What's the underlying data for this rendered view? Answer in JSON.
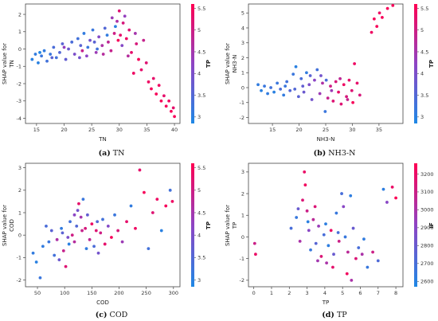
{
  "colors": {
    "low": "#1e88e5",
    "mid": "#8e44c4",
    "high": "#ff0052"
  },
  "chart_data": [
    {
      "id": "a",
      "type": "scatter",
      "caption_letter": "(a)",
      "caption_text": " TN",
      "xlabel": "TN",
      "ylabel": [
        "SHAP value for",
        "TN"
      ],
      "xlim": [
        13,
        41
      ],
      "ylim": [
        -4.3,
        2.6
      ],
      "xticks": [
        15,
        20,
        25,
        30,
        35,
        40
      ],
      "yticks": [
        -4,
        -3,
        -2,
        -1,
        0,
        1,
        2
      ],
      "colorbar": {
        "label": "TP",
        "min": 2.85,
        "max": 5.6,
        "ticks": [
          3.0,
          3.5,
          4.0,
          4.5,
          5.0,
          5.5
        ]
      },
      "pts": [
        [
          14.2,
          -0.6,
          3.0
        ],
        [
          14.8,
          -0.3,
          3.1
        ],
        [
          15.3,
          -0.8,
          3.0
        ],
        [
          15.9,
          -0.4,
          3.2
        ],
        [
          16.4,
          -0.1,
          3.1
        ],
        [
          16.9,
          -0.7,
          3.3
        ],
        [
          17.5,
          -0.3,
          3.2
        ],
        [
          18.1,
          0.1,
          3.4
        ],
        [
          18.6,
          -0.5,
          3.3
        ],
        [
          19.2,
          -0.2,
          3.5
        ],
        [
          19.7,
          0.3,
          3.6
        ],
        [
          20.3,
          -0.6,
          3.7
        ],
        [
          20.8,
          0.0,
          3.8
        ],
        [
          21.4,
          0.4,
          3.4
        ],
        [
          21.9,
          -0.3,
          4.0
        ],
        [
          22.5,
          0.6,
          3.3
        ],
        [
          23.0,
          0.2,
          3.6
        ],
        [
          23.6,
          0.9,
          3.1
        ],
        [
          24.1,
          -0.4,
          4.2
        ],
        [
          24.7,
          0.5,
          3.9
        ],
        [
          25.2,
          1.1,
          3.2
        ],
        [
          25.8,
          -0.2,
          4.4
        ],
        [
          26.3,
          0.7,
          4.1
        ],
        [
          26.9,
          0.2,
          4.6
        ],
        [
          27.4,
          1.2,
          3.5
        ],
        [
          28.0,
          0.4,
          4.8
        ],
        [
          28.5,
          -0.1,
          4.9
        ],
        [
          29.1,
          0.9,
          5.0
        ],
        [
          29.6,
          1.6,
          4.6
        ],
        [
          30.0,
          2.2,
          5.2
        ],
        [
          30.2,
          0.8,
          5.3
        ],
        [
          30.7,
          1.5,
          5.1
        ],
        [
          31.0,
          1.9,
          4.3
        ],
        [
          31.3,
          0.6,
          5.4
        ],
        [
          31.8,
          1.1,
          5.2
        ],
        [
          32.2,
          -0.2,
          5.3
        ],
        [
          32.6,
          -1.4,
          5.4
        ],
        [
          33.1,
          0.3,
          5.1
        ],
        [
          33.5,
          -0.6,
          5.5
        ],
        [
          34.0,
          -1.2,
          5.3
        ],
        [
          34.4,
          0.5,
          4.9
        ],
        [
          34.9,
          -0.8,
          5.2
        ],
        [
          35.3,
          -1.9,
          5.4
        ],
        [
          35.8,
          -2.3,
          5.5
        ],
        [
          36.2,
          -1.7,
          5.3
        ],
        [
          36.7,
          -2.6,
          5.5
        ],
        [
          37.2,
          -2.1,
          5.4
        ],
        [
          37.6,
          -3.0,
          5.5
        ],
        [
          38.1,
          -2.7,
          5.3
        ],
        [
          38.5,
          -3.3,
          5.5
        ],
        [
          39.0,
          -3.0,
          5.4
        ],
        [
          39.4,
          -3.6,
          5.5
        ],
        [
          39.8,
          -3.4,
          5.3
        ],
        [
          40.0,
          -3.9,
          5.5
        ],
        [
          22.8,
          -0.5,
          3.9
        ],
        [
          26.0,
          0.0,
          3.3
        ],
        [
          27.8,
          0.8,
          3.1
        ],
        [
          29.3,
          1.3,
          3.0
        ],
        [
          28.7,
          1.8,
          4.4
        ],
        [
          25.5,
          0.4,
          3.6
        ],
        [
          24.3,
          0.1,
          3.2
        ],
        [
          30.5,
          0.2,
          4.1
        ],
        [
          31.6,
          -0.4,
          4.7
        ],
        [
          20.0,
          0.1,
          4.3
        ],
        [
          17.8,
          -0.5,
          3.6
        ],
        [
          15.6,
          -0.2,
          2.9
        ],
        [
          27.1,
          -0.3,
          4.7
        ],
        [
          32.9,
          0.9,
          4.5
        ],
        [
          29.8,
          0.5,
          5.5
        ],
        [
          23.3,
          -0.1,
          4.9
        ]
      ]
    },
    {
      "id": "b",
      "type": "scatter",
      "caption_letter": "(b)",
      "caption_text": " NH3-N",
      "xlabel": "NH3-N",
      "ylabel": [
        "SHAP value for",
        "NH3-N"
      ],
      "xlim": [
        10.5,
        39.5
      ],
      "ylim": [
        -2.4,
        5.6
      ],
      "xticks": [
        15,
        20,
        25,
        30,
        35
      ],
      "yticks": [
        -2,
        -1,
        0,
        1,
        2,
        3,
        4,
        5
      ],
      "colorbar": {
        "label": "TP",
        "min": 2.85,
        "max": 5.6,
        "ticks": [
          3.0,
          3.5,
          4.0,
          4.5,
          5.0,
          5.5
        ]
      },
      "pts": [
        [
          12.3,
          0.2,
          3.1
        ],
        [
          12.9,
          -0.2,
          3.0
        ],
        [
          13.5,
          0.1,
          3.2
        ],
        [
          14.1,
          -0.4,
          3.1
        ],
        [
          14.7,
          0.0,
          3.3
        ],
        [
          15.3,
          -0.3,
          3.0
        ],
        [
          15.9,
          0.3,
          3.2
        ],
        [
          16.5,
          -0.1,
          3.4
        ],
        [
          17.1,
          -0.5,
          3.1
        ],
        [
          17.7,
          0.4,
          3.3
        ],
        [
          18.3,
          -0.2,
          3.5
        ],
        [
          18.9,
          0.9,
          3.2
        ],
        [
          19.4,
          1.4,
          3.0
        ],
        [
          19.9,
          -0.6,
          3.6
        ],
        [
          20.4,
          0.6,
          3.4
        ],
        [
          20.9,
          -0.3,
          3.8
        ],
        [
          21.4,
          1.0,
          3.1
        ],
        [
          21.9,
          0.2,
          4.0
        ],
        [
          22.4,
          -0.8,
          3.9
        ],
        [
          22.9,
          0.5,
          4.2
        ],
        [
          23.4,
          1.2,
          3.3
        ],
        [
          23.9,
          -0.4,
          4.4
        ],
        [
          24.4,
          0.3,
          4.6
        ],
        [
          24.9,
          -1.6,
          3.2
        ],
        [
          25.4,
          -0.7,
          4.9
        ],
        [
          25.9,
          0.1,
          5.0
        ],
        [
          26.4,
          -0.9,
          5.2
        ],
        [
          26.9,
          0.4,
          5.1
        ],
        [
          27.4,
          -0.3,
          5.3
        ],
        [
          27.9,
          -1.1,
          5.2
        ],
        [
          28.4,
          0.2,
          5.4
        ],
        [
          28.9,
          -0.6,
          5.1
        ],
        [
          29.4,
          0.5,
          5.3
        ],
        [
          29.9,
          -0.2,
          5.2
        ],
        [
          30.4,
          1.6,
          5.4
        ],
        [
          30.9,
          0.3,
          5.3
        ],
        [
          31.4,
          -0.5,
          5.1
        ],
        [
          33.6,
          3.7,
          5.4
        ],
        [
          34.1,
          4.6,
          5.5
        ],
        [
          34.6,
          4.1,
          5.5
        ],
        [
          35.1,
          5.0,
          5.4
        ],
        [
          35.6,
          4.7,
          5.5
        ],
        [
          36.6,
          5.3,
          5.5
        ],
        [
          37.6,
          5.5,
          5.5
        ],
        [
          22.1,
          0.8,
          3.6
        ],
        [
          20.7,
          0.1,
          3.7
        ],
        [
          26.1,
          -0.2,
          4.4
        ],
        [
          27.7,
          0.6,
          4.8
        ],
        [
          29.1,
          -0.8,
          4.9
        ],
        [
          19.2,
          -0.1,
          3.5
        ],
        [
          24.1,
          0.8,
          3.9
        ],
        [
          17.4,
          0.1,
          3.2
        ],
        [
          30.1,
          -1.0,
          5.5
        ],
        [
          25.1,
          0.5,
          3.4
        ]
      ]
    },
    {
      "id": "c",
      "type": "scatter",
      "caption_letter": "(c)",
      "caption_text": " COD",
      "xlabel": "COD",
      "ylabel": [
        "SHAP value for",
        "COD"
      ],
      "xlim": [
        28,
        312
      ],
      "ylim": [
        -2.3,
        3.2
      ],
      "xticks": [
        50,
        100,
        150,
        200,
        250,
        300
      ],
      "yticks": [
        -2,
        -1,
        0,
        1,
        2,
        3
      ],
      "colorbar": {
        "label": "TP",
        "min": 2.85,
        "max": 5.6,
        "ticks": [
          3.0,
          3.5,
          4.0,
          4.5,
          5.0,
          5.5
        ]
      },
      "pts": [
        [
          42,
          -0.8,
          3.1
        ],
        [
          48,
          -1.2,
          3.0
        ],
        [
          55,
          -1.9,
          3.2
        ],
        [
          60,
          -0.5,
          3.1
        ],
        [
          66,
          0.4,
          3.4
        ],
        [
          71,
          -0.3,
          3.2
        ],
        [
          76,
          0.2,
          3.6
        ],
        [
          81,
          -0.9,
          3.3
        ],
        [
          86,
          -0.2,
          4.6
        ],
        [
          90,
          -1.1,
          3.8
        ],
        [
          94,
          0.3,
          3.1
        ],
        [
          98,
          -0.7,
          4.9
        ],
        [
          102,
          -1.4,
          5.2
        ],
        [
          106,
          -0.1,
          4.0
        ],
        [
          110,
          0.6,
          3.3
        ],
        [
          114,
          0.0,
          5.0
        ],
        [
          118,
          0.9,
          4.2
        ],
        [
          122,
          0.4,
          3.5
        ],
        [
          126,
          1.4,
          5.3
        ],
        [
          130,
          0.8,
          4.5
        ],
        [
          134,
          1.6,
          3.2
        ],
        [
          138,
          0.3,
          5.1
        ],
        [
          142,
          0.9,
          3.7
        ],
        [
          146,
          -0.2,
          4.8
        ],
        [
          150,
          0.5,
          5.4
        ],
        [
          154,
          -0.5,
          3.4
        ],
        [
          158,
          0.2,
          5.2
        ],
        [
          162,
          -0.8,
          3.9
        ],
        [
          166,
          0.1,
          5.0
        ],
        [
          170,
          0.7,
          3.3
        ],
        [
          174,
          -0.4,
          5.3
        ],
        [
          180,
          0.4,
          4.1
        ],
        [
          186,
          -0.1,
          5.5
        ],
        [
          192,
          0.9,
          3.2
        ],
        [
          198,
          0.2,
          5.1
        ],
        [
          206,
          -0.3,
          4.4
        ],
        [
          214,
          0.6,
          5.3
        ],
        [
          222,
          1.3,
          3.1
        ],
        [
          230,
          0.3,
          5.4
        ],
        [
          238,
          2.9,
          5.3
        ],
        [
          246,
          1.9,
          5.5
        ],
        [
          254,
          -0.6,
          3.3
        ],
        [
          262,
          1.0,
          5.2
        ],
        [
          270,
          1.6,
          5.4
        ],
        [
          278,
          0.2,
          3.0
        ],
        [
          286,
          1.3,
          5.5
        ],
        [
          294,
          2.0,
          3.3
        ],
        [
          298,
          1.5,
          5.4
        ],
        [
          108,
          -0.4,
          3.0
        ],
        [
          124,
          1.1,
          3.9
        ],
        [
          140,
          -0.6,
          3.1
        ],
        [
          96,
          0.1,
          3.6
        ],
        [
          132,
          0.2,
          4.9
        ],
        [
          160,
          0.6,
          3.5
        ],
        [
          118,
          -0.3,
          4.7
        ]
      ]
    },
    {
      "id": "d",
      "type": "scatter",
      "caption_letter": "(d)",
      "caption_text": " TP",
      "xlabel": "TP",
      "ylabel": [
        "SHAP value for",
        "TP"
      ],
      "xlim": [
        -0.3,
        8.4
      ],
      "ylim": [
        -2.3,
        3.4
      ],
      "xticks": [
        0,
        1,
        2,
        3,
        4,
        5,
        6,
        7,
        8
      ],
      "yticks": [
        -2,
        -1,
        0,
        1,
        2,
        3
      ],
      "colorbar": {
        "label": "IF",
        "min": 2570,
        "max": 3260,
        "ticks": [
          2600,
          2700,
          2800,
          2900,
          3000,
          3100,
          3200
        ]
      },
      "pts": [
        [
          0.05,
          -0.3,
          3100
        ],
        [
          0.1,
          -0.8,
          3200
        ],
        [
          2.1,
          0.4,
          2700
        ],
        [
          2.4,
          0.9,
          2650
        ],
        [
          2.6,
          -0.2,
          3000
        ],
        [
          2.75,
          1.7,
          3150
        ],
        [
          2.85,
          3.0,
          3200
        ],
        [
          2.9,
          2.4,
          3220
        ],
        [
          3.0,
          1.2,
          3100
        ],
        [
          3.1,
          0.3,
          2900
        ],
        [
          3.2,
          -0.6,
          2650
        ],
        [
          3.35,
          0.8,
          3050
        ],
        [
          3.5,
          -0.3,
          2750
        ],
        [
          3.65,
          0.5,
          2950
        ],
        [
          3.8,
          -0.9,
          3150
        ],
        [
          3.95,
          0.1,
          2700
        ],
        [
          4.1,
          -1.2,
          3000
        ],
        [
          4.2,
          -0.4,
          2620
        ],
        [
          4.35,
          0.3,
          3200
        ],
        [
          4.5,
          -0.8,
          2800
        ],
        [
          4.65,
          1.1,
          2650
        ],
        [
          4.8,
          -0.2,
          3100
        ],
        [
          4.95,
          2.0,
          2700
        ],
        [
          5.05,
          1.4,
          2900
        ],
        [
          5.15,
          0.0,
          2650
        ],
        [
          5.3,
          -0.7,
          3050
        ],
        [
          5.45,
          1.9,
          2620
        ],
        [
          5.6,
          0.4,
          2800
        ],
        [
          5.75,
          -1.0,
          3150
        ],
        [
          5.9,
          -0.5,
          2700
        ],
        [
          6.1,
          -0.8,
          3000
        ],
        [
          6.4,
          -1.4,
          2650
        ],
        [
          6.7,
          -0.7,
          3100
        ],
        [
          7.0,
          -1.1,
          2720
        ],
        [
          7.3,
          2.2,
          2620
        ],
        [
          7.5,
          1.6,
          2900
        ],
        [
          7.8,
          2.3,
          3200
        ],
        [
          8.0,
          1.8,
          3250
        ],
        [
          3.05,
          0.7,
          2610
        ],
        [
          4.05,
          0.6,
          2620
        ],
        [
          4.45,
          -1.4,
          3180
        ],
        [
          5.25,
          -1.7,
          3220
        ],
        [
          5.5,
          -2.0,
          3000
        ],
        [
          3.45,
          1.4,
          3150
        ],
        [
          3.6,
          -1.1,
          2980
        ],
        [
          4.75,
          0.2,
          2700
        ],
        [
          6.2,
          -0.1,
          2630
        ],
        [
          2.5,
          1.3,
          2800
        ]
      ]
    }
  ]
}
